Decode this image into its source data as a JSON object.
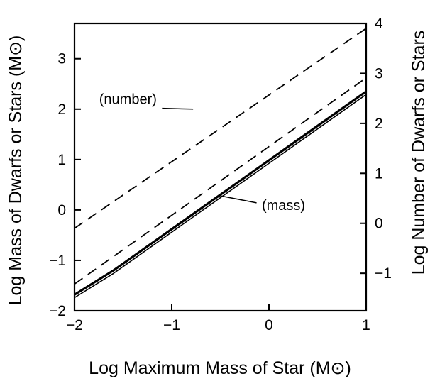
{
  "chart_data": {
    "type": "line",
    "title": "",
    "xlabel": "Log Maximum Mass of Star (M⊙)",
    "ylabel_left": "Log Mass of Dwarfs or Stars (M⊙)",
    "ylabel_right": "Log Number of Dwarfs or Stars",
    "xlim": [
      -2,
      1
    ],
    "ylim_left": [
      -2,
      3.7
    ],
    "ylim_right": [
      -1.75,
      4.0
    ],
    "x_ticks": [
      -2,
      -1,
      0,
      1
    ],
    "x_tick_labels": [
      "−2",
      "−1",
      "0",
      "1"
    ],
    "y_left_ticks": [
      -2,
      -1,
      0,
      1,
      2,
      3
    ],
    "y_left_tick_labels": [
      "−2",
      "−1",
      "0",
      "1",
      "2",
      "3"
    ],
    "y_right_ticks": [
      -1,
      0,
      1,
      2,
      3,
      4
    ],
    "y_right_tick_labels": [
      "−1",
      "0",
      "1",
      "2",
      "3",
      "4"
    ],
    "grid": false,
    "series": [
      {
        "style": "solid-thick",
        "axis": "left",
        "x": [
          -2,
          -1.6,
          1
        ],
        "y": [
          -1.68,
          -1.2,
          2.35
        ]
      },
      {
        "style": "solid",
        "axis": "left",
        "x": [
          -2,
          -1.6,
          1
        ],
        "y": [
          -1.74,
          -1.26,
          2.29
        ]
      },
      {
        "style": "dashed",
        "axis": "left",
        "x": [
          -2,
          1
        ],
        "y": [
          -1.47,
          2.62
        ]
      },
      {
        "style": "dashed",
        "axis": "right",
        "x": [
          -2,
          1
        ],
        "y": [
          -0.1,
          3.9
        ]
      }
    ],
    "annotations": [
      {
        "text": "(number)",
        "x": -1.45,
        "y": 2.1,
        "leader_to": [
          -0.78,
          2.0
        ]
      },
      {
        "text": "(mass)",
        "x": 0.15,
        "y": 0.0,
        "leader_to": [
          -0.5,
          0.28
        ]
      }
    ]
  }
}
